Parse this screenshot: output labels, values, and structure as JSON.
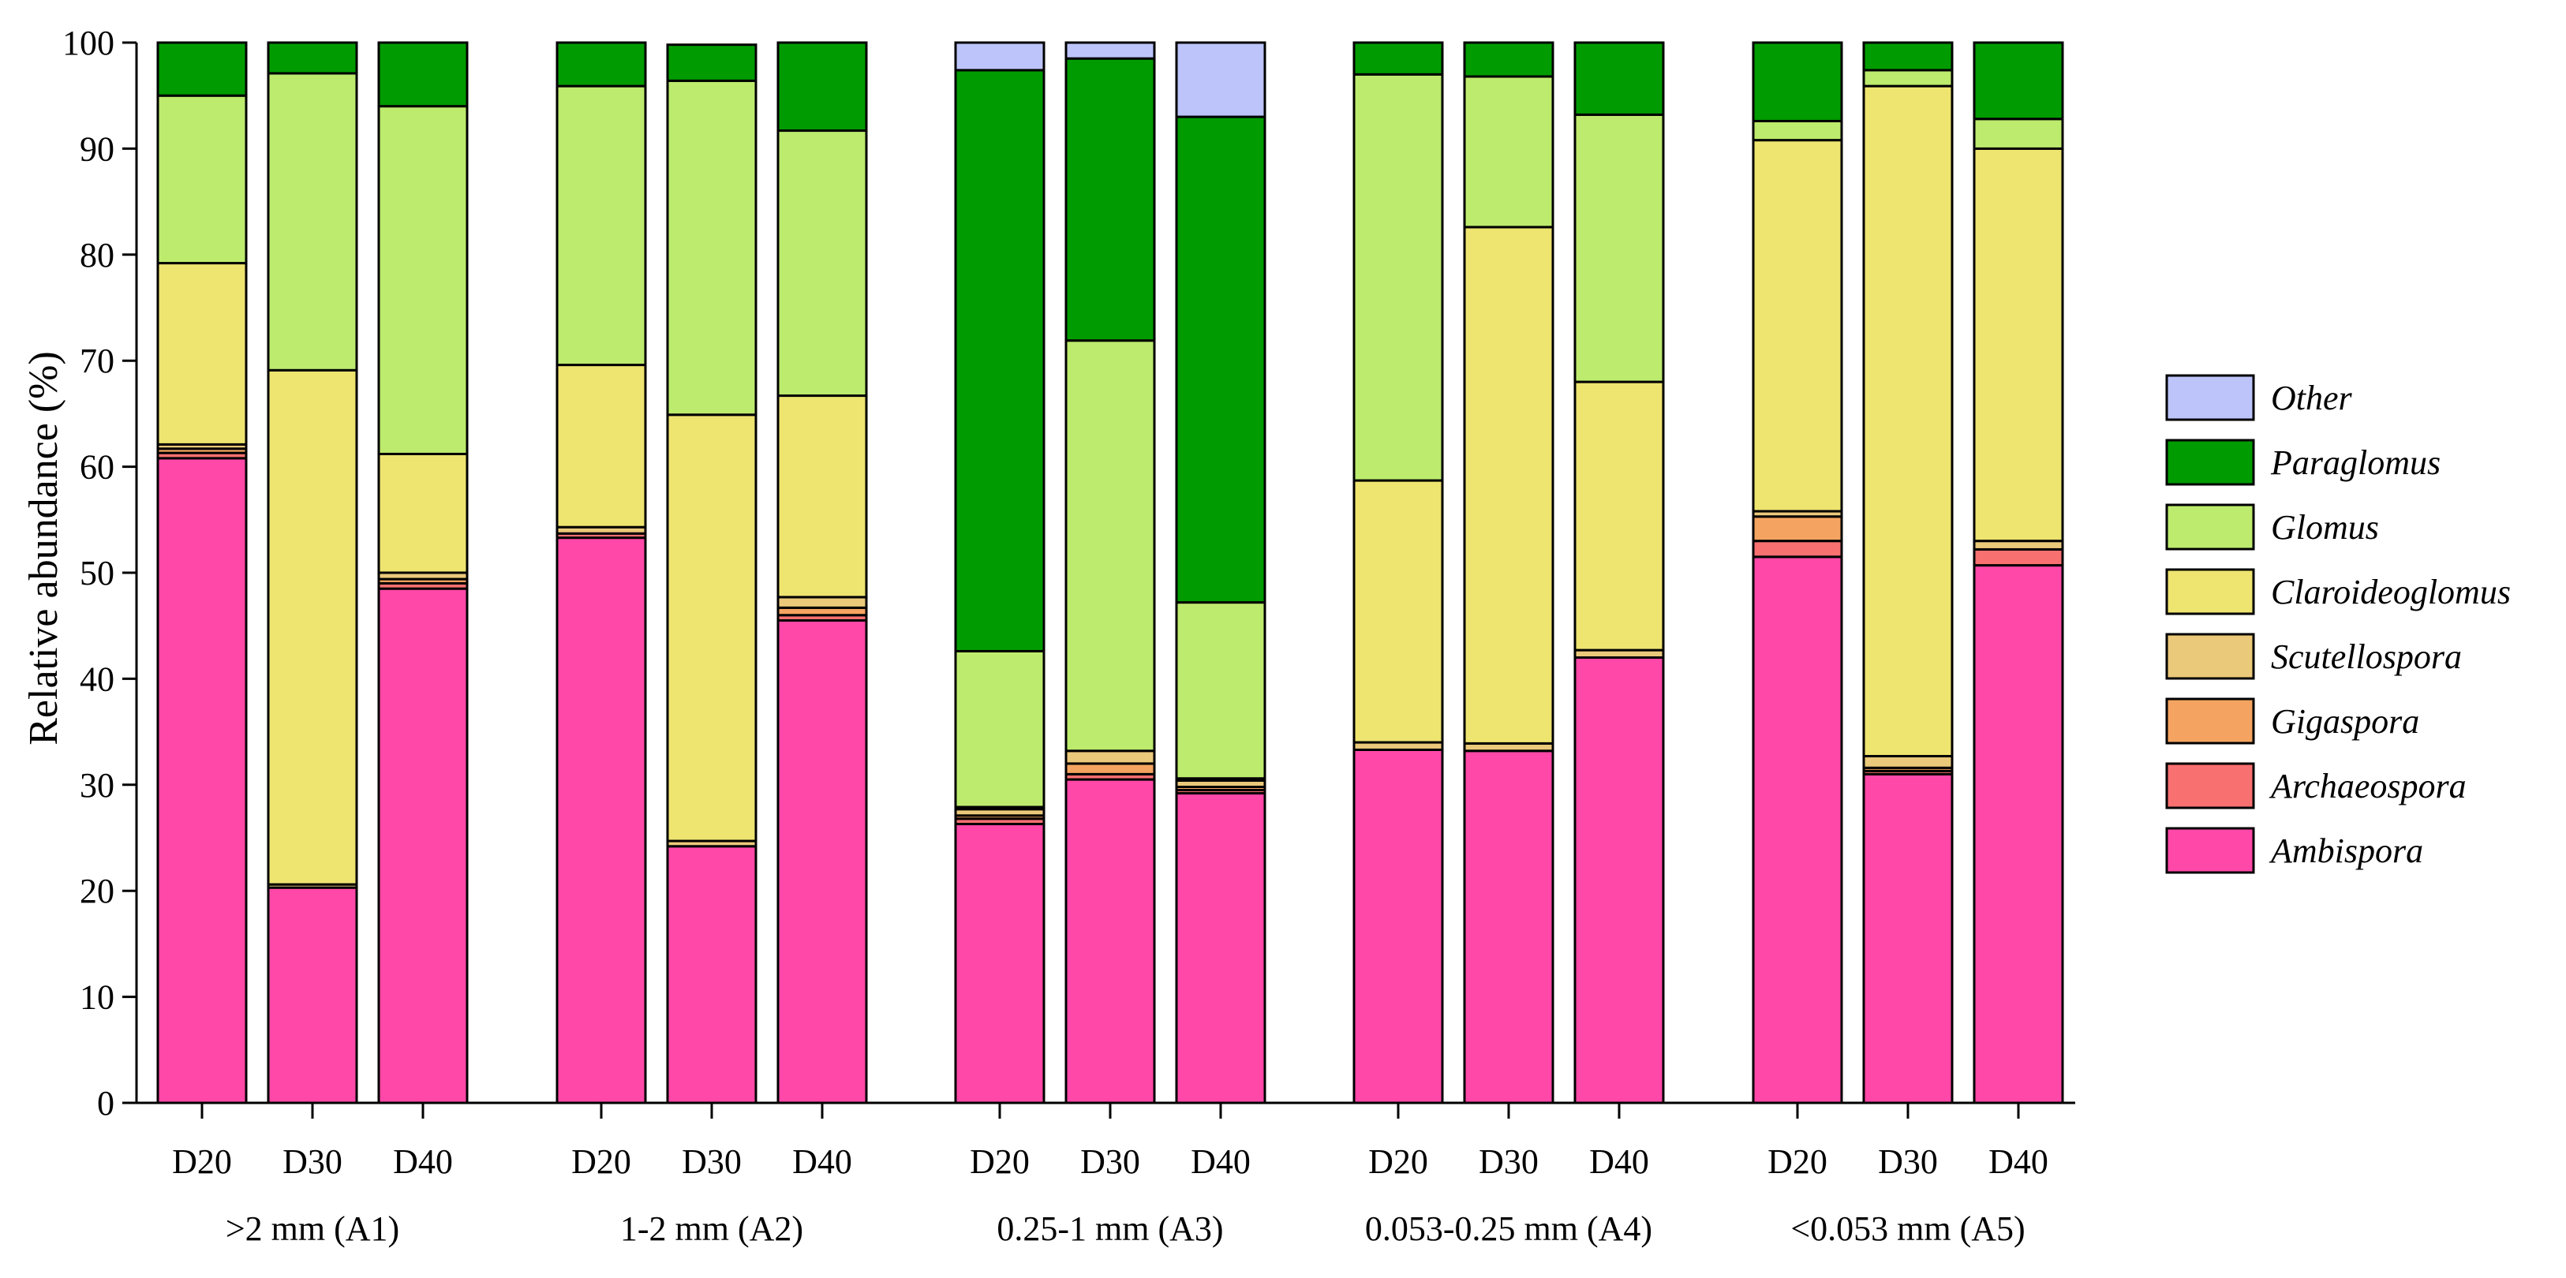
{
  "chart_data": {
    "type": "bar",
    "stacked": true,
    "title": "",
    "xlabel": "",
    "ylabel": "Relative abundance (%)",
    "ylim": [
      0,
      100
    ],
    "yticks": [
      "0",
      "10",
      "20",
      "30",
      "40",
      "50",
      "60",
      "70",
      "80",
      "90",
      "100"
    ],
    "grid": false,
    "legend_position": "right",
    "groups": [
      ">2 mm (A1)",
      "1-2 mm (A2)",
      "0.25-1 mm (A3)",
      "0.053-0.25 mm (A4)",
      "<0.053 mm (A5)"
    ],
    "categories": [
      "D20",
      "D30",
      "D40",
      "D20",
      "D30",
      "D40",
      "D20",
      "D30",
      "D40",
      "D20",
      "D30",
      "D40",
      "D20",
      "D30",
      "D40"
    ],
    "series": [
      {
        "name": "Ambispora",
        "color": "#FF48A8",
        "values": [
          60.8,
          20.3,
          48.5,
          53.3,
          24.2,
          45.5,
          26.3,
          30.5,
          29.2,
          33.3,
          33.2,
          42.0,
          51.5,
          31.0,
          50.7
        ]
      },
      {
        "name": "Archaeospora",
        "color": "#F87070",
        "values": [
          0.5,
          0.0,
          0.5,
          0.4,
          0.0,
          0.5,
          0.5,
          0.5,
          0.3,
          0.0,
          0.0,
          0.0,
          1.5,
          0.3,
          1.5
        ]
      },
      {
        "name": "Gigaspora",
        "color": "#F4A460",
        "values": [
          0.4,
          0.0,
          0.4,
          0.0,
          0.0,
          0.7,
          0.3,
          1.0,
          0.3,
          0.0,
          0.0,
          0.0,
          2.3,
          0.3,
          0.0
        ]
      },
      {
        "name": "Scutellospora",
        "color": "#EBC97A",
        "values": [
          0.4,
          0.3,
          0.6,
          0.6,
          0.5,
          1.0,
          0.6,
          1.2,
          0.6,
          0.7,
          0.7,
          0.7,
          0.5,
          1.1,
          0.8
        ]
      },
      {
        "name": "Claroideoglomus",
        "color": "#EEE470",
        "values": [
          17.1,
          48.5,
          11.2,
          15.3,
          40.2,
          19.0,
          0.2,
          0.0,
          0.2,
          24.7,
          48.7,
          25.3,
          35.0,
          63.2,
          37.0
        ]
      },
      {
        "name": "Glomus",
        "color": "#BDEB6E",
        "values": [
          15.8,
          28.0,
          32.8,
          26.3,
          31.5,
          25.0,
          14.7,
          38.7,
          16.6,
          38.3,
          14.2,
          25.2,
          1.8,
          1.5,
          2.8
        ]
      },
      {
        "name": "Paraglomus",
        "color": "#009B00",
        "values": [
          5.0,
          2.9,
          6.0,
          4.1,
          3.4,
          8.3,
          54.8,
          26.6,
          45.8,
          3.0,
          3.2,
          6.8,
          7.4,
          2.6,
          7.2
        ]
      },
      {
        "name": "Other",
        "color": "#BCC4FA",
        "values": [
          0.0,
          0.0,
          0.0,
          0.0,
          0.0,
          0.0,
          2.6,
          1.5,
          7.0,
          0.0,
          0.0,
          0.0,
          0.0,
          0.0,
          0.0
        ]
      }
    ]
  }
}
